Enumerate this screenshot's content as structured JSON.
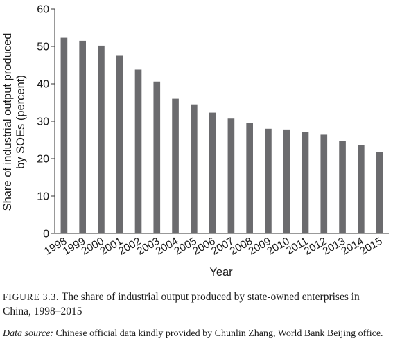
{
  "chart_data": {
    "type": "bar",
    "xlabel": "Year",
    "ylabel": [
      "Share of industrial output produced",
      "by SOEs (percent)"
    ],
    "ylim": [
      0,
      60
    ],
    "yticks": [
      "0",
      "10",
      "20",
      "30",
      "40",
      "50",
      "60"
    ],
    "categories": [
      "1998",
      "1999",
      "2000",
      "2001",
      "2002",
      "2003",
      "2004",
      "2005",
      "2006",
      "2007",
      "2008",
      "2009",
      "2010",
      "2011",
      "2012",
      "2013",
      "2014",
      "2015"
    ],
    "values": [
      52.3,
      51.5,
      50.2,
      47.5,
      43.8,
      40.6,
      36.0,
      34.5,
      32.3,
      30.7,
      29.5,
      28.0,
      27.8,
      27.2,
      26.4,
      24.8,
      23.7,
      21.8
    ],
    "bar_color": "#6b6b6e",
    "grid": false
  },
  "caption": {
    "label": "FIGURE 3.3.",
    "text": "The share of industrial output produced by state-owned enterprises in China, 1998–2015"
  },
  "source": {
    "label": "Data source:",
    "text": "Chinese official data kindly provided by Chunlin Zhang, World Bank Beijing office."
  }
}
